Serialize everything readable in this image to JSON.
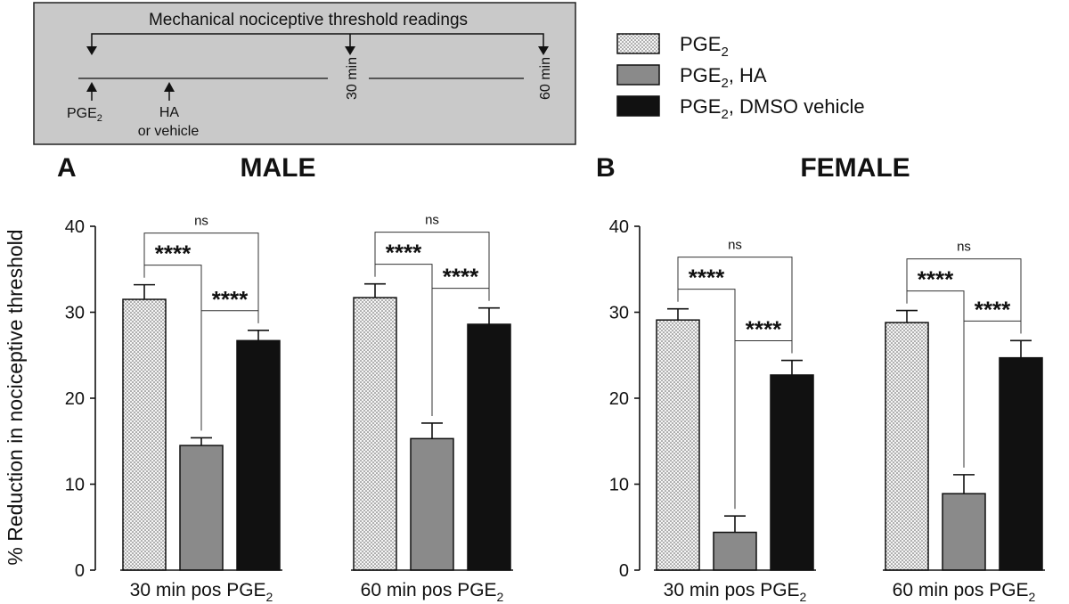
{
  "timeline": {
    "title": "Mechanical nociceptive threshold readings",
    "injection1_main": "PGE",
    "injection1_sub": "2",
    "injection2_line1": "HA",
    "injection2_line2": "or vehicle",
    "t30": "30 min",
    "t60": "60 min"
  },
  "legend": [
    {
      "main": "PGE",
      "sub": "2",
      "rest": "",
      "fill": "dots"
    },
    {
      "main": "PGE",
      "sub": "2",
      "rest": ", HA",
      "fill": "#8a8a8a"
    },
    {
      "main": "PGE",
      "sub": "2",
      "rest": ", DMSO vehicle",
      "fill": "#111111"
    }
  ],
  "y_axis_label": "% Reduction in nociceptive threshold",
  "chart_data": [
    {
      "type": "bar",
      "panel_letter": "A",
      "title": "MALE",
      "ylim": [
        0,
        40
      ],
      "yticks": [
        "0",
        "10",
        "20",
        "30",
        "40"
      ],
      "groups": [
        {
          "label_main": "30 min pos PGE",
          "label_sub": "2",
          "values": [
            31.5,
            14.5,
            26.7
          ],
          "errors": [
            1.7,
            0.9,
            1.2
          ],
          "comparisons": [
            {
              "from": 0,
              "to": 1,
              "label": "****"
            },
            {
              "from": 1,
              "to": 2,
              "label": "****"
            },
            {
              "from": 0,
              "to": 2,
              "label": "ns"
            }
          ]
        },
        {
          "label_main": "60 min pos PGE",
          "label_sub": "2",
          "values": [
            31.7,
            15.3,
            28.6
          ],
          "errors": [
            1.6,
            1.8,
            1.9
          ],
          "comparisons": [
            {
              "from": 0,
              "to": 1,
              "label": "****"
            },
            {
              "from": 1,
              "to": 2,
              "label": "****"
            },
            {
              "from": 0,
              "to": 2,
              "label": "ns"
            }
          ]
        }
      ]
    },
    {
      "type": "bar",
      "panel_letter": "B",
      "title": "FEMALE",
      "ylim": [
        0,
        40
      ],
      "yticks": [
        "0",
        "10",
        "20",
        "30",
        "40"
      ],
      "groups": [
        {
          "label_main": "30 min pos PGE",
          "label_sub": "2",
          "values": [
            29.1,
            4.4,
            22.7
          ],
          "errors": [
            1.3,
            1.9,
            1.7
          ],
          "comparisons": [
            {
              "from": 0,
              "to": 1,
              "label": "****"
            },
            {
              "from": 1,
              "to": 2,
              "label": "****"
            },
            {
              "from": 0,
              "to": 2,
              "label": "ns"
            }
          ]
        },
        {
          "label_main": "60 min pos PGE",
          "label_sub": "2",
          "values": [
            28.8,
            8.9,
            24.7
          ],
          "errors": [
            1.4,
            2.2,
            2.0
          ],
          "comparisons": [
            {
              "from": 0,
              "to": 1,
              "label": "****"
            },
            {
              "from": 1,
              "to": 2,
              "label": "****"
            },
            {
              "from": 0,
              "to": 2,
              "label": "ns"
            }
          ]
        }
      ]
    }
  ]
}
